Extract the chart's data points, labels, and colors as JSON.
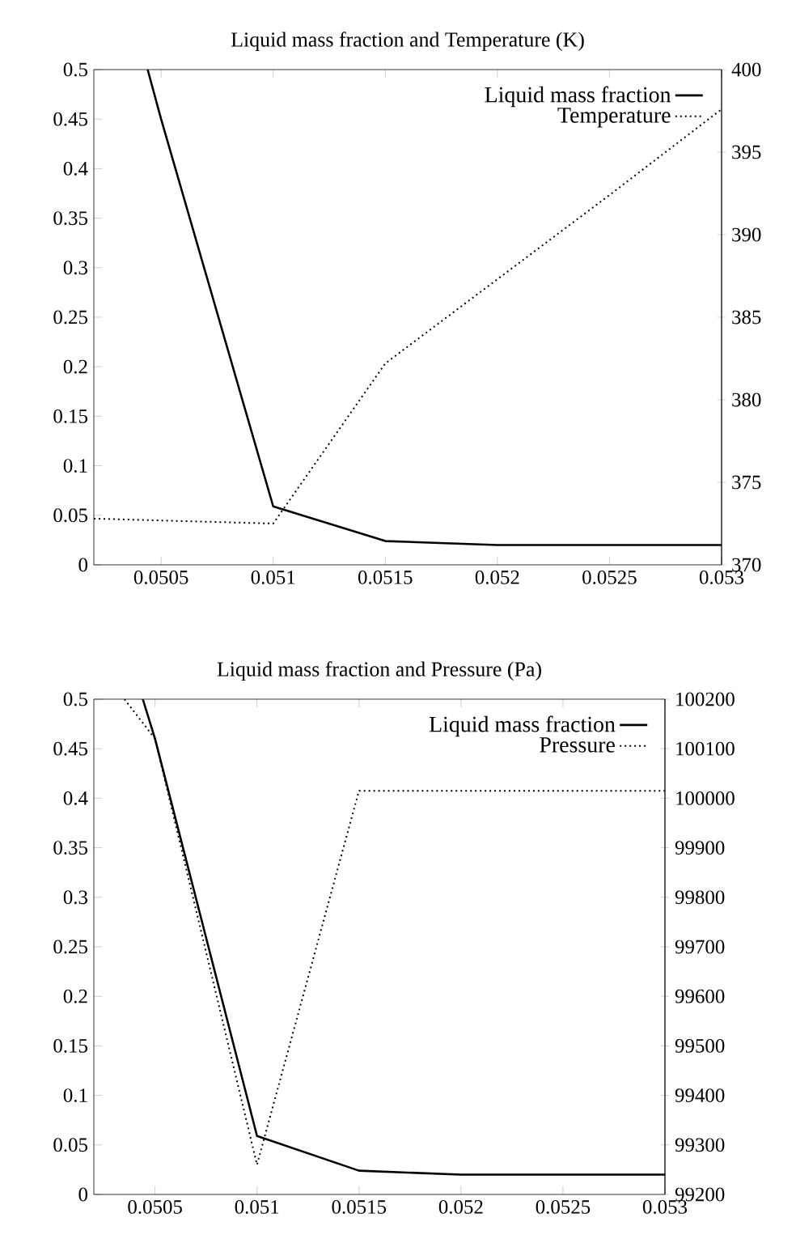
{
  "chart_data": [
    {
      "type": "line",
      "title": "Liquid mass fraction and Temperature (K)",
      "xlim": [
        0.0502,
        0.053
      ],
      "xticks": [
        0.0505,
        0.051,
        0.0515,
        0.052,
        0.0525,
        0.053
      ],
      "ylim": [
        0,
        0.5
      ],
      "yticks": [
        0,
        0.05,
        0.1,
        0.15,
        0.2,
        0.25,
        0.3,
        0.35,
        0.4,
        0.45,
        0.5
      ],
      "y2lim": [
        370,
        400
      ],
      "y2ticks": [
        370,
        375,
        380,
        385,
        390,
        395,
        400
      ],
      "legend": "top right",
      "grid": false,
      "marker": "none",
      "series": [
        {
          "name": "Liquid mass fraction",
          "color": "#000000",
          "line_style": "solid",
          "x": [
            0.05044,
            0.0505,
            0.051,
            0.0515,
            0.052,
            0.0525,
            0.053
          ],
          "values": [
            0.5,
            0.45,
            0.059,
            0.024,
            0.02,
            0.02,
            0.02
          ]
        },
        {
          "name": "Temperature",
          "color": "#000000",
          "line_style": "dotted",
          "axis": "y2",
          "x": [
            0.0502,
            0.051,
            0.0515,
            0.052,
            0.0525,
            0.053
          ],
          "values": [
            372.8,
            372.5,
            382.2,
            387.3,
            392.4,
            397.6
          ]
        }
      ]
    },
    {
      "type": "line",
      "title": "Liquid mass fraction and Pressure (Pa)",
      "xlim": [
        0.0502,
        0.053
      ],
      "xticks": [
        0.0505,
        0.051,
        0.0515,
        0.052,
        0.0525,
        0.053
      ],
      "ylim": [
        0,
        0.5
      ],
      "yticks": [
        0,
        0.05,
        0.1,
        0.15,
        0.2,
        0.25,
        0.3,
        0.35,
        0.4,
        0.45,
        0.5
      ],
      "y2lim": [
        99200,
        100200
      ],
      "y2ticks": [
        99200,
        99300,
        99400,
        99500,
        99600,
        99700,
        99800,
        99900,
        100000,
        100100,
        100200
      ],
      "legend": "top right",
      "grid": false,
      "marker": "none",
      "series": [
        {
          "name": "Liquid mass fraction",
          "color": "#000000",
          "line_style": "solid",
          "x": [
            0.05044,
            0.0505,
            0.051,
            0.0515,
            0.052,
            0.0525,
            0.053
          ],
          "values": [
            0.5,
            0.46,
            0.059,
            0.024,
            0.02,
            0.02,
            0.02
          ]
        },
        {
          "name": "Pressure",
          "color": "#000000",
          "line_style": "dotted",
          "axis": "y2",
          "x": [
            0.05035,
            0.0505,
            0.051,
            0.0515,
            0.052,
            0.0525,
            0.053
          ],
          "values": [
            100200,
            100120,
            99260,
            100015,
            100015,
            100015,
            100015
          ]
        }
      ]
    }
  ]
}
